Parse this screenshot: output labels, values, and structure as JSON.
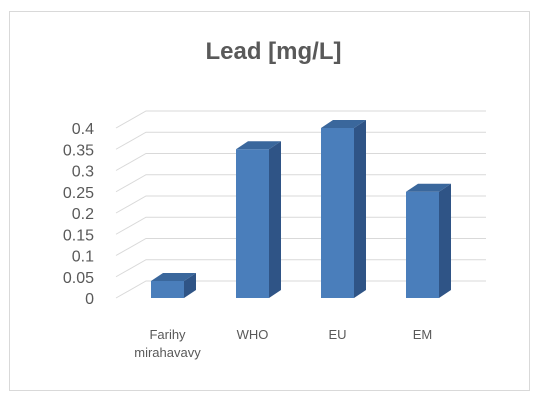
{
  "chart_data": {
    "type": "bar",
    "title": "Lead [mg/L]",
    "categories": [
      "Farihy mirahavavy",
      "WHO",
      "EU",
      "EM"
    ],
    "category_lines": [
      [
        "Farihy",
        "mirahavavy"
      ],
      [
        "WHO"
      ],
      [
        "EU"
      ],
      [
        "EM"
      ]
    ],
    "values": [
      0.04,
      0.35,
      0.4,
      0.25
    ],
    "ylim": [
      0,
      0.4
    ],
    "yticks": [
      "0",
      "0.05",
      "0.1",
      "0.15",
      "0.2",
      "0.25",
      "0.3",
      "0.35",
      "0.4"
    ],
    "grid": true,
    "legend": "none",
    "bar_3d": true,
    "colors": {
      "bar_front": "#4a7ebb",
      "bar_side": "#2f5486",
      "bar_top": "#3a679c",
      "grid": "#d9d9d9",
      "text": "#595959"
    }
  }
}
